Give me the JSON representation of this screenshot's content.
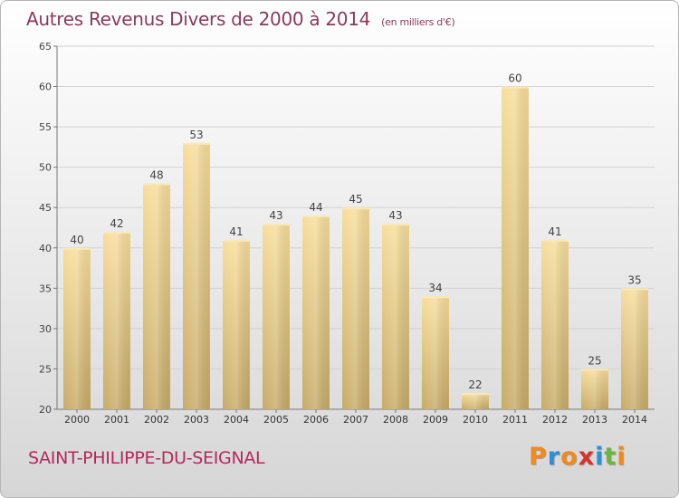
{
  "header": {
    "title": "Autres Revenus Divers de 2000 à 2014",
    "unit": "(en milliers d'€)"
  },
  "footer": {
    "location": "SAINT-PHILIPPE-DU-SEIGNAL",
    "brand": "Proxiti",
    "brand_colors": [
      "#f08a1c",
      "#2e8fd6",
      "#f08a1c",
      "#d8322f",
      "#2e8fd6",
      "#6db33f",
      "#f08a1c"
    ]
  },
  "colors": {
    "title": "#8a3a5a",
    "location": "#b5285a",
    "bar_light": "#f7dc98",
    "bar_dark": "#c9ae6a"
  },
  "chart_data": {
    "type": "bar",
    "title": "Autres Revenus Divers de 2000 à 2014",
    "subtitle": "(en milliers d'€)",
    "xlabel": "",
    "ylabel": "",
    "categories": [
      "2000",
      "2001",
      "2002",
      "2003",
      "2004",
      "2005",
      "2006",
      "2007",
      "2008",
      "2009",
      "2010",
      "2011",
      "2012",
      "2013",
      "2014"
    ],
    "values": [
      40,
      42,
      48,
      53,
      41,
      43,
      44,
      45,
      43,
      34,
      22,
      60,
      41,
      25,
      35
    ],
    "ylim": [
      20,
      65
    ],
    "yticks": [
      20,
      25,
      30,
      35,
      40,
      45,
      50,
      55,
      60,
      65
    ],
    "grid": true,
    "data_labels": true
  }
}
